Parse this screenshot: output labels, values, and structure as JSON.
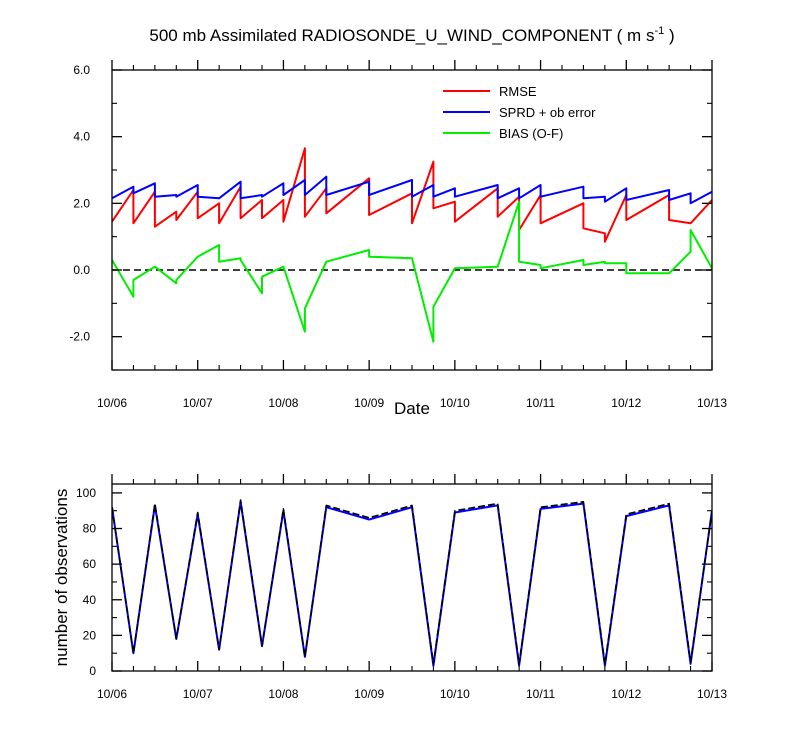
{
  "title": {
    "main": "500 mb Assimilated RADIOSONDE_U_WIND_COMPONENT ( m s",
    "sup": "-1",
    "close": " )"
  },
  "chart_data": [
    {
      "type": "line",
      "panel": "top",
      "xlabel": "Date",
      "ylabel": "",
      "xlim": [
        0,
        7
      ],
      "ylim": [
        -3,
        6
      ],
      "x_ticks": [
        0,
        1,
        2,
        3,
        4,
        5,
        6,
        7
      ],
      "x_tick_labels": [
        "10/06",
        "10/07",
        "10/08",
        "10/09",
        "10/10",
        "10/11",
        "10/12",
        "10/13"
      ],
      "y_ticks": [
        -2,
        0,
        2,
        4,
        6
      ],
      "y_tick_labels": [
        "-2.0",
        "0.0",
        "2.0",
        "4.0",
        "6.0"
      ],
      "legend_position": "top-right",
      "reference_line": {
        "y": 0,
        "style": "dashed"
      },
      "series": [
        {
          "name": "RMSE",
          "color": "#ff0000",
          "x": [
            0,
            0.25,
            0.25,
            0.5,
            0.5,
            0.75,
            0.75,
            1,
            1,
            1.25,
            1.25,
            1.5,
            1.5,
            1.75,
            1.75,
            2,
            2,
            2.25,
            2.25,
            2.5,
            2.5,
            3,
            3,
            3.5,
            3.5,
            3.75,
            3.75,
            4,
            4,
            4.5,
            4.5,
            4.75,
            4.75,
            5,
            5,
            5.5,
            5.5,
            5.75,
            5.75,
            6,
            6,
            6.5,
            6.5,
            6.75,
            6.75,
            7
          ],
          "values": [
            1.45,
            2.4,
            1.4,
            2.35,
            1.3,
            1.75,
            1.5,
            2.35,
            1.55,
            2.0,
            1.4,
            2.5,
            1.55,
            2.1,
            1.55,
            2.1,
            1.45,
            3.65,
            1.6,
            2.45,
            1.7,
            2.75,
            1.65,
            2.3,
            1.4,
            3.25,
            1.85,
            2.05,
            1.45,
            2.45,
            1.6,
            2.2,
            1.2,
            2.25,
            1.4,
            2.0,
            1.25,
            1.1,
            0.85,
            2.25,
            1.5,
            2.25,
            1.5,
            1.4,
            1.4,
            2.1
          ]
        },
        {
          "name": "SPRD + ob error",
          "color": "#0000ff",
          "x": [
            0,
            0.25,
            0.25,
            0.5,
            0.5,
            0.75,
            0.75,
            1,
            1,
            1.25,
            1.25,
            1.5,
            1.5,
            1.75,
            1.75,
            2,
            2,
            2.25,
            2.25,
            2.5,
            2.5,
            3,
            3,
            3.5,
            3.5,
            3.75,
            3.75,
            4,
            4,
            4.5,
            4.5,
            4.75,
            4.75,
            5,
            5,
            5.5,
            5.5,
            5.75,
            5.75,
            6,
            6,
            6.5,
            6.5,
            6.75,
            6.75,
            7
          ],
          "values": [
            2.15,
            2.5,
            2.3,
            2.6,
            2.2,
            2.25,
            2.2,
            2.55,
            2.2,
            2.15,
            2.15,
            2.65,
            2.15,
            2.25,
            2.2,
            2.6,
            2.25,
            2.7,
            2.25,
            2.8,
            2.25,
            2.65,
            2.25,
            2.7,
            2.2,
            2.55,
            2.2,
            2.45,
            2.2,
            2.55,
            2.15,
            2.45,
            2.15,
            2.55,
            2.2,
            2.5,
            2.15,
            2.2,
            2.05,
            2.45,
            2.1,
            2.4,
            2.1,
            2.3,
            2.0,
            2.35
          ]
        },
        {
          "name": "BIAS (O-F)",
          "color": "#00ee00",
          "x": [
            0,
            0.25,
            0.25,
            0.5,
            0.5,
            0.75,
            0.75,
            1,
            1,
            1.25,
            1.25,
            1.5,
            1.5,
            1.75,
            1.75,
            2,
            2,
            2.25,
            2.25,
            2.5,
            2.5,
            3,
            3,
            3.5,
            3.5,
            3.75,
            3.75,
            4,
            4,
            4.5,
            4.5,
            4.75,
            4.75,
            5,
            5,
            5.5,
            5.5,
            5.75,
            5.75,
            6,
            6,
            6.5,
            6.5,
            6.75,
            6.75,
            7
          ],
          "values": [
            0.3,
            -0.8,
            -0.3,
            0.1,
            0.1,
            -0.4,
            -0.3,
            0.4,
            0.4,
            0.75,
            0.25,
            0.35,
            0.3,
            -0.7,
            -0.2,
            0.1,
            0.1,
            -1.85,
            -1.15,
            0.25,
            0.25,
            0.6,
            0.4,
            0.35,
            0.35,
            -2.15,
            -1.1,
            0.05,
            0.05,
            0.1,
            0.1,
            2.05,
            0.25,
            0.15,
            0.05,
            0.3,
            0.15,
            0.25,
            0.2,
            0.2,
            -0.1,
            -0.1,
            -0.1,
            0.55,
            1.2,
            0.05
          ]
        }
      ]
    },
    {
      "type": "line",
      "panel": "bottom",
      "xlabel": "",
      "ylabel": "number of observations",
      "xlim": [
        0,
        7
      ],
      "ylim": [
        0,
        105
      ],
      "x_ticks": [
        0,
        1,
        2,
        3,
        4,
        5,
        6,
        7
      ],
      "x_tick_labels": [
        "10/06",
        "10/07",
        "10/08",
        "10/09",
        "10/10",
        "10/11",
        "10/12",
        "10/13"
      ],
      "y_ticks": [
        0,
        20,
        40,
        60,
        80,
        100
      ],
      "y_tick_labels": [
        "0",
        "20",
        "40",
        "60",
        "80",
        "100"
      ],
      "series": [
        {
          "style": "solid",
          "color": "#0000ff",
          "x": [
            0,
            0.25,
            0.5,
            0.75,
            1,
            1.25,
            1.5,
            1.75,
            2,
            2.25,
            2.5,
            3,
            3.5,
            3.75,
            4,
            4.5,
            4.75,
            5,
            5.5,
            5.75,
            6,
            6.5,
            6.75,
            7
          ],
          "values": [
            92,
            10,
            93,
            18,
            88,
            12,
            95,
            14,
            90,
            8,
            92,
            85,
            92,
            3,
            89,
            93,
            3,
            91,
            94,
            3,
            87,
            93,
            4,
            90
          ]
        },
        {
          "style": "dashed",
          "color": "#000000",
          "x": [
            0,
            0.25,
            0.5,
            0.75,
            1,
            1.25,
            1.5,
            1.75,
            2,
            2.25,
            2.5,
            3,
            3.5,
            3.75,
            4,
            4.5,
            4.75,
            5,
            5.5,
            5.75,
            6,
            6.5,
            6.75,
            7
          ],
          "values": [
            92,
            10,
            94,
            18,
            89,
            12,
            96,
            14,
            91,
            8,
            93,
            86,
            93,
            4,
            90,
            94,
            4,
            92,
            95,
            4,
            88,
            94,
            5,
            90
          ]
        }
      ]
    }
  ]
}
